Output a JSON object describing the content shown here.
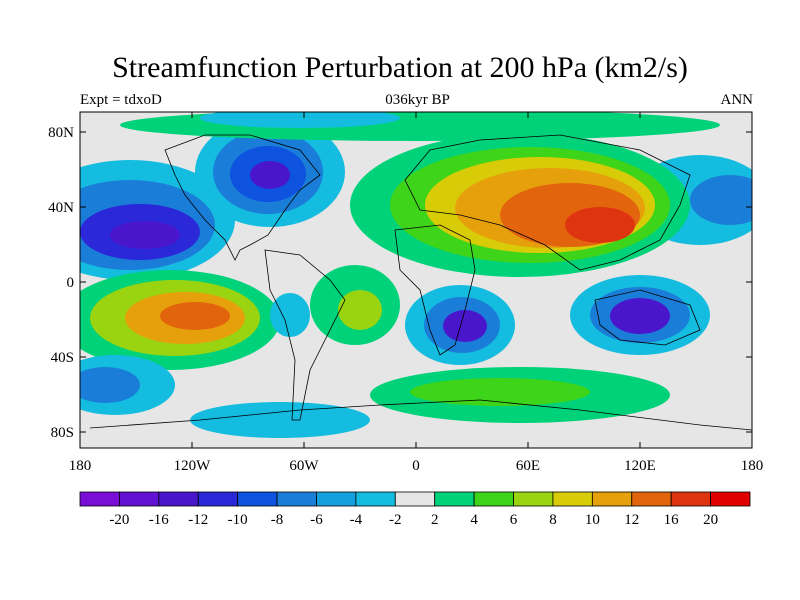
{
  "title": "Streamfunction Perturbation at 200 hPa (km2/s)",
  "left_label": "Expt = tdxoD",
  "center_label": "036kyr BP",
  "right_label": "ANN",
  "x_ticks": [
    "180",
    "120W",
    "60W",
    "0",
    "60E",
    "120E",
    "180"
  ],
  "y_ticks": [
    "80N",
    "40N",
    "0",
    "40S",
    "80S"
  ],
  "colorbar": {
    "labels": [
      "-20",
      "-16",
      "-12",
      "-10",
      "-8",
      "-6",
      "-4",
      "-2",
      "2",
      "4",
      "6",
      "8",
      "10",
      "12",
      "16",
      "20"
    ],
    "colors": [
      "#7a0ed6",
      "#6212d2",
      "#4a16cc",
      "#2a28d8",
      "#0e52e0",
      "#1a7ed8",
      "#14a0dc",
      "#14bce0",
      "#e6e6e6",
      "#00d27a",
      "#3ed41a",
      "#9ad410",
      "#d8cc08",
      "#e6a00c",
      "#e2640c",
      "#de3410",
      "#e00000"
    ]
  },
  "chart_data": {
    "type": "heatmap",
    "title": "Streamfunction Perturbation at 200 hPa (km2/s)",
    "subtitle": "036kyr BP",
    "experiment": "Expt = tdxoD",
    "season": "ANN",
    "units": "km2/s",
    "xlim": [
      -180,
      180
    ],
    "ylim": [
      -90,
      90
    ],
    "levels": [
      -20,
      -16,
      -12,
      -10,
      -8,
      -6,
      -4,
      -2,
      2,
      4,
      6,
      8,
      10,
      12,
      16,
      20
    ],
    "features": [
      {
        "lon": -75,
        "lat": 55,
        "value": -16
      },
      {
        "lon": -140,
        "lat": 22,
        "value": -14
      },
      {
        "lon": -170,
        "lat": 35,
        "value": -10
      },
      {
        "lon": 160,
        "lat": 42,
        "value": -10
      },
      {
        "lon": 100,
        "lat": 30,
        "value": 16
      },
      {
        "lon": 40,
        "lat": 50,
        "value": 12
      },
      {
        "lon": -130,
        "lat": -20,
        "value": 16
      },
      {
        "lon": -40,
        "lat": -25,
        "value": 8
      },
      {
        "lon": 20,
        "lat": -25,
        "value": -16
      },
      {
        "lon": 110,
        "lat": -20,
        "value": -16
      },
      {
        "lon": 40,
        "lat": -65,
        "value": 6
      },
      {
        "lon": -175,
        "lat": -50,
        "value": -8
      },
      {
        "lon": -90,
        "lat": -65,
        "value": -8
      }
    ]
  }
}
